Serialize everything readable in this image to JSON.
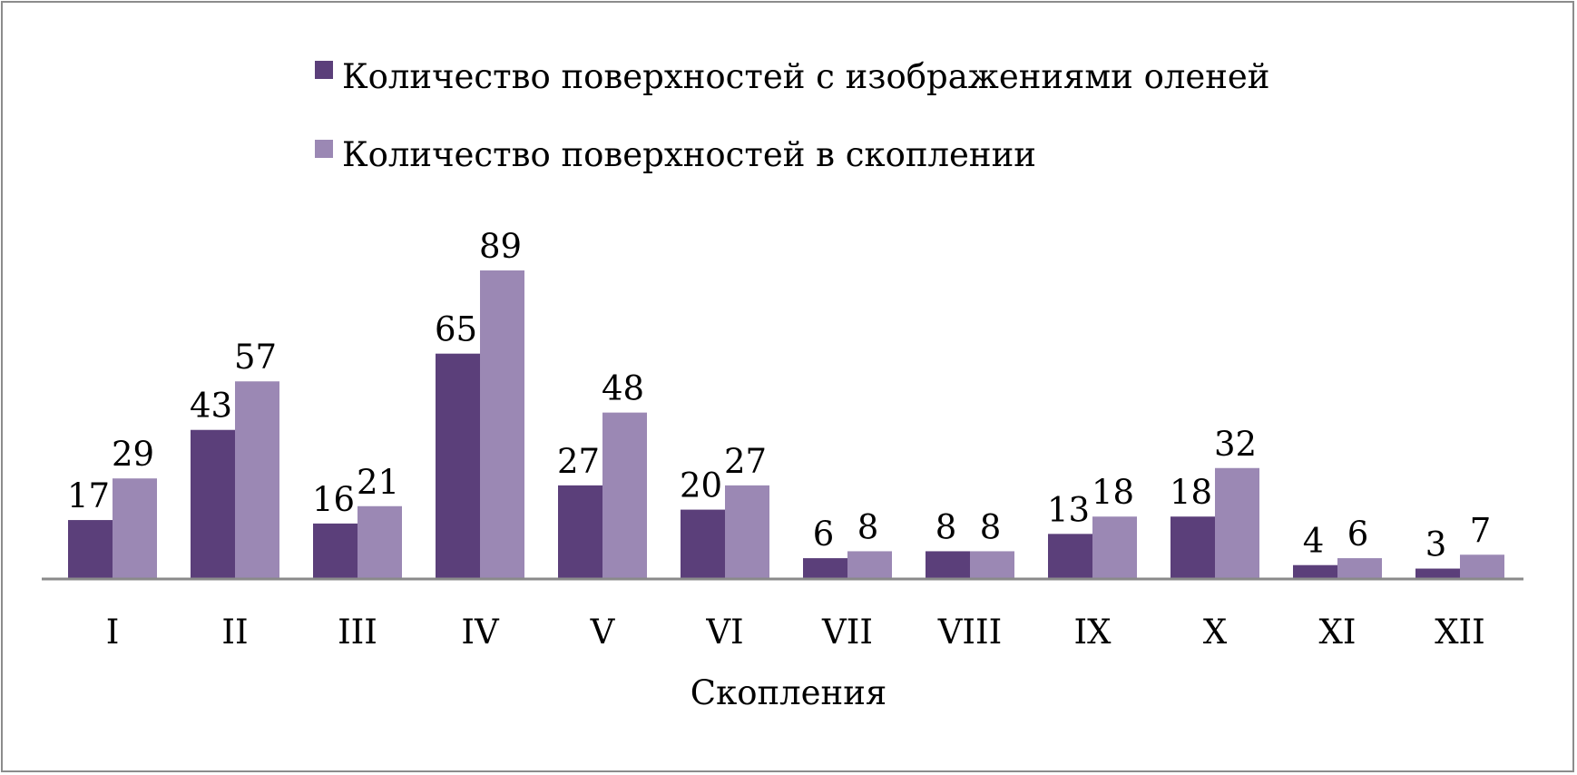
{
  "chart_data": {
    "type": "bar",
    "title": "",
    "xlabel": "Скопления",
    "ylabel": "",
    "categories": [
      "I",
      "II",
      "III",
      "IV",
      "V",
      "VI",
      "VII",
      "VIII",
      "IX",
      "X",
      "XI",
      "XII"
    ],
    "series": [
      {
        "name": "Количество поверхностей с изображениями оленей",
        "color": "#5b3f7a",
        "values": [
          17,
          43,
          16,
          65,
          27,
          20,
          6,
          8,
          13,
          18,
          4,
          3
        ]
      },
      {
        "name": "Количество поверхностей в скоплении",
        "color": "#9b88b4",
        "values": [
          29,
          57,
          21,
          89,
          48,
          27,
          8,
          8,
          18,
          32,
          6,
          7
        ]
      }
    ],
    "ylim": [
      0,
      89
    ],
    "grid": false,
    "legend_position": "top",
    "data_labels": true
  }
}
